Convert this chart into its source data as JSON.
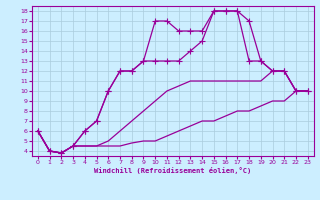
{
  "title": "",
  "xlabel": "Windchill (Refroidissement éolien,°C)",
  "background_color": "#cceeff",
  "grid_color": "#aaccdd",
  "line_color": "#990099",
  "xlim": [
    -0.5,
    23.5
  ],
  "ylim": [
    3.5,
    18.5
  ],
  "xticks": [
    0,
    1,
    2,
    3,
    4,
    5,
    6,
    7,
    8,
    9,
    10,
    11,
    12,
    13,
    14,
    15,
    16,
    17,
    18,
    19,
    20,
    21,
    22,
    23
  ],
  "yticks": [
    4,
    5,
    6,
    7,
    8,
    9,
    10,
    11,
    12,
    13,
    14,
    15,
    16,
    17,
    18
  ],
  "lines": [
    {
      "x": [
        0,
        1,
        2,
        3,
        4,
        5,
        6,
        7,
        8,
        9,
        10,
        11,
        12,
        13,
        14,
        15,
        16,
        17,
        18,
        19,
        20,
        21,
        22,
        23
      ],
      "y": [
        6,
        4,
        3.8,
        4.5,
        4.5,
        4.5,
        4.5,
        4.5,
        4.8,
        5,
        5,
        5.5,
        6,
        6.5,
        7,
        7,
        7.5,
        8,
        8,
        8.5,
        9,
        9,
        10,
        10
      ],
      "marker": false
    },
    {
      "x": [
        0,
        1,
        2,
        3,
        4,
        5,
        6,
        7,
        8,
        9,
        10,
        11,
        12,
        13,
        14,
        15,
        16,
        17,
        18,
        19,
        20,
        21,
        22,
        23
      ],
      "y": [
        6,
        4,
        3.8,
        4.5,
        4.5,
        4.5,
        5,
        6,
        7,
        8,
        9,
        10,
        10.5,
        11,
        11,
        11,
        11,
        11,
        11,
        11,
        12,
        12,
        10,
        10
      ],
      "marker": false
    },
    {
      "x": [
        0,
        1,
        2,
        3,
        4,
        5,
        6,
        7,
        8,
        9,
        10,
        11,
        12,
        13,
        14,
        15,
        16,
        17,
        18,
        19,
        20,
        21,
        22,
        23
      ],
      "y": [
        6,
        4,
        3.8,
        4.5,
        6,
        7,
        10,
        12,
        12,
        13,
        13,
        13,
        13,
        14,
        15,
        18,
        18,
        18,
        13,
        13,
        12,
        12,
        10,
        10
      ],
      "marker": true
    },
    {
      "x": [
        0,
        1,
        2,
        3,
        4,
        5,
        6,
        7,
        8,
        9,
        10,
        11,
        12,
        13,
        14,
        15,
        16,
        17,
        18,
        19,
        20,
        21,
        22,
        23
      ],
      "y": [
        6,
        4,
        3.8,
        4.5,
        6,
        7,
        10,
        12,
        12,
        13,
        17,
        17,
        16,
        16,
        16,
        18,
        18,
        18,
        17,
        13,
        12,
        12,
        10,
        10
      ],
      "marker": true
    }
  ]
}
